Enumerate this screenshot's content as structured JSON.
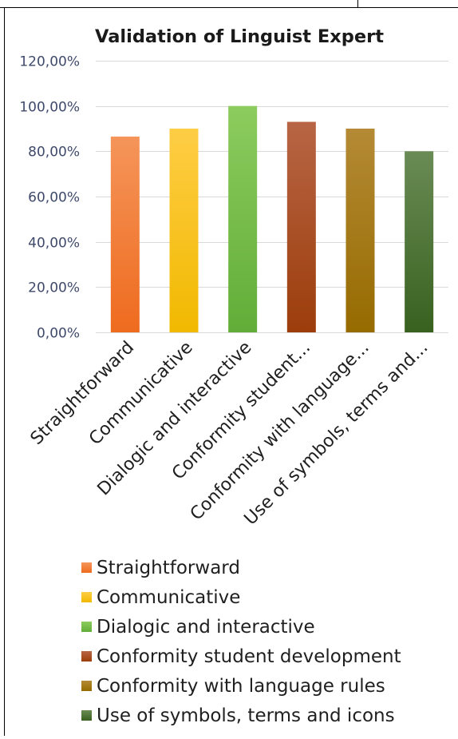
{
  "chart_data": {
    "type": "bar",
    "title": "Validation of Linguist Expert",
    "categories": [
      "Straightforward",
      "Communicative",
      "Dialogic and interactive",
      "Conformity student...",
      "Conformity with language...",
      "Use of symbols, terms and..."
    ],
    "values": [
      0.865,
      0.9,
      1.0,
      0.93,
      0.9,
      0.8
    ],
    "ylim": [
      0,
      1.2
    ],
    "yticks": [
      "0,00%",
      "20,00%",
      "40,00%",
      "60,00%",
      "80,00%",
      "100,00%",
      "120,00%"
    ],
    "grid": true,
    "legend_position": "bottom",
    "legend": [
      "Straightforward",
      "Communicative",
      "Dialogic and interactive",
      "Conformity student development",
      "Conformity with language rules",
      "Use of symbols, terms and icons"
    ],
    "colors": [
      [
        "#f5955a",
        "#ee6b1e"
      ],
      [
        "#ffcd45",
        "#f1b900"
      ],
      [
        "#8ccc5e",
        "#62ad39"
      ],
      [
        "#b86545",
        "#9c3d0b"
      ],
      [
        "#b48a35",
        "#966b00"
      ],
      [
        "#6a8b55",
        "#38611f"
      ]
    ]
  }
}
